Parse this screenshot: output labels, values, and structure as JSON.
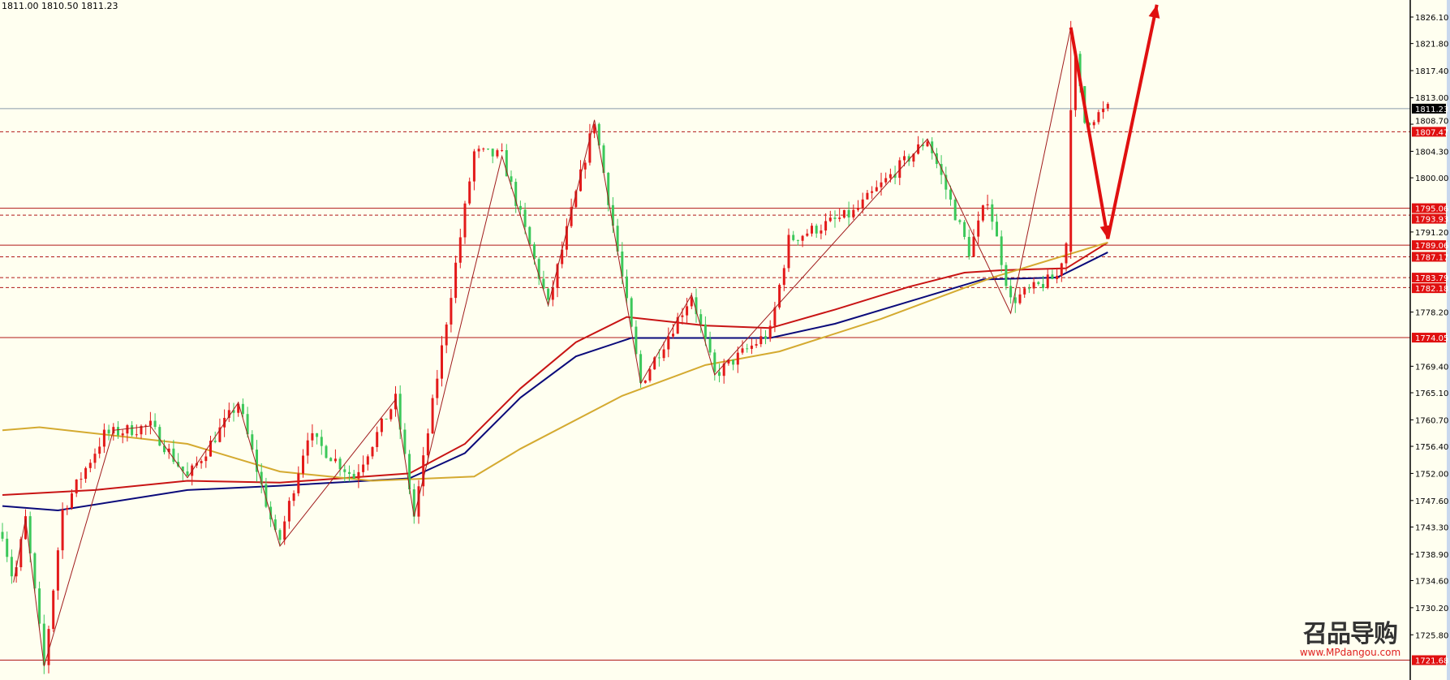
{
  "header": {
    "ohlc_text": "1811.00 1810.50 1811.23"
  },
  "watermark": {
    "logo_text": "召品导购",
    "url": "www.MPdangou.com"
  },
  "colors": {
    "background": "#fffff0",
    "bull": "#e31a1a",
    "bear": "#3cc85a",
    "ma_red": "#c81414",
    "ma_blue": "#0a0a7a",
    "ma_gold": "#d4aa30",
    "level": "#b01818",
    "arrow": "#e01010",
    "current": "#8a9aaa"
  },
  "chart_data": {
    "type": "candlestick",
    "ylim": [
      1719.0,
      1828.9
    ],
    "y_ticks": [
      "1826.10",
      "1821.80",
      "1817.40",
      "1813.00",
      "1808.70",
      "1804.30",
      "1800.00",
      "1791.20",
      "1778.20",
      "1769.40",
      "1765.10",
      "1760.70",
      "1756.40",
      "1752.00",
      "1747.60",
      "1743.30",
      "1738.90",
      "1734.60",
      "1730.20",
      "1725.80"
    ],
    "current_price": {
      "value": 1811.23,
      "label": "1811.23"
    },
    "levels": [
      {
        "value": 1807.47,
        "label": "1807.47",
        "style": "dashed"
      },
      {
        "value": 1795.06,
        "label": "1795.06",
        "style": "solid"
      },
      {
        "value": 1793.93,
        "label": "1793.93",
        "style": "dashed"
      },
      {
        "value": 1789.06,
        "label": "1789.06",
        "style": "solid"
      },
      {
        "value": 1787.17,
        "label": "1787.17",
        "style": "dashed"
      },
      {
        "value": 1783.79,
        "label": "1783.79",
        "style": "dashed"
      },
      {
        "value": 1782.18,
        "label": "1782.18",
        "style": "dashed"
      },
      {
        "value": 1774.05,
        "label": "1774.05",
        "style": "solid"
      },
      {
        "value": 1721.68,
        "label": "1721.68",
        "style": "solid"
      }
    ],
    "price_pivots": [
      [
        0,
        1742.5
      ],
      [
        2.4,
        1734.3
      ],
      [
        5,
        1744.6
      ],
      [
        9,
        1720.7
      ],
      [
        13,
        1746
      ],
      [
        22,
        1758.3
      ],
      [
        32,
        1759.7
      ],
      [
        40,
        1751.3
      ],
      [
        51,
        1763.5
      ],
      [
        59.6,
        1740.2
      ],
      [
        66,
        1758.3
      ],
      [
        76,
        1751.4
      ],
      [
        85,
        1764
      ],
      [
        89,
        1745
      ],
      [
        102,
        1804.1
      ],
      [
        108,
        1803.5
      ],
      [
        118,
        1779.3
      ],
      [
        128,
        1809.4
      ],
      [
        138,
        1766.6
      ],
      [
        149,
        1781
      ],
      [
        154,
        1768
      ],
      [
        166,
        1775
      ],
      [
        170,
        1789.9
      ],
      [
        184,
        1794.3
      ],
      [
        200,
        1806.3
      ],
      [
        209,
        1788
      ],
      [
        213,
        1796.7
      ],
      [
        218,
        1780
      ],
      [
        228,
        1784
      ],
      [
        230,
        1789.5
      ],
      [
        231,
        1824.4
      ],
      [
        234,
        1809
      ],
      [
        239,
        1811.2
      ]
    ],
    "zigzag": [
      [
        2.4,
        1734.3
      ],
      [
        5,
        1744.6
      ],
      [
        9,
        1720.7
      ],
      [
        24,
        1759
      ],
      [
        32,
        1759.7
      ],
      [
        40,
        1751.3
      ],
      [
        51,
        1763.5
      ],
      [
        60,
        1740.2
      ],
      [
        85,
        1764
      ],
      [
        89,
        1745
      ],
      [
        108,
        1803.5
      ],
      [
        118,
        1779.3
      ],
      [
        128,
        1809.4
      ],
      [
        138,
        1766.6
      ],
      [
        149,
        1781
      ],
      [
        154,
        1768
      ],
      [
        200,
        1806.3
      ],
      [
        218,
        1778
      ],
      [
        231,
        1824.4
      ]
    ],
    "moving_averages": [
      {
        "color": "#c81414",
        "points": [
          [
            0,
            1748.5
          ],
          [
            20,
            1749.3
          ],
          [
            40,
            1750.8
          ],
          [
            60,
            1750.5
          ],
          [
            88,
            1752.0
          ],
          [
            100,
            1756.8
          ],
          [
            112,
            1765.8
          ],
          [
            124,
            1773.3
          ],
          [
            135,
            1777.4
          ],
          [
            152,
            1776.0
          ],
          [
            166,
            1775.6
          ],
          [
            180,
            1778.6
          ],
          [
            196,
            1782.3
          ],
          [
            208,
            1784.6
          ],
          [
            216,
            1785.0
          ],
          [
            230,
            1785.3
          ],
          [
            239,
            1789.5
          ]
        ]
      },
      {
        "color": "#0a0a7a",
        "points": [
          [
            0,
            1746.7
          ],
          [
            12,
            1746.0
          ],
          [
            40,
            1749.3
          ],
          [
            60,
            1750.0
          ],
          [
            88,
            1751.2
          ],
          [
            100,
            1755.3
          ],
          [
            112,
            1764.3
          ],
          [
            124,
            1771.0
          ],
          [
            136,
            1774.0
          ],
          [
            166,
            1774.0
          ],
          [
            180,
            1776.3
          ],
          [
            200,
            1780.8
          ],
          [
            212,
            1783.5
          ],
          [
            228,
            1783.8
          ],
          [
            239,
            1787.9
          ]
        ]
      },
      {
        "color": "#d4aa30",
        "points": [
          [
            0,
            1759.0
          ],
          [
            8,
            1759.5
          ],
          [
            40,
            1756.8
          ],
          [
            60,
            1752.3
          ],
          [
            80,
            1750.8
          ],
          [
            102,
            1751.5
          ],
          [
            112,
            1756.0
          ],
          [
            134,
            1764.6
          ],
          [
            152,
            1769.6
          ],
          [
            168,
            1771.8
          ],
          [
            190,
            1777.1
          ],
          [
            214,
            1783.8
          ],
          [
            239,
            1789.5
          ]
        ]
      }
    ],
    "forecast_arrow": [
      [
        231,
        1824.4
      ],
      [
        239,
        1790.1
      ],
      [
        249.6,
        1828.1
      ]
    ]
  }
}
